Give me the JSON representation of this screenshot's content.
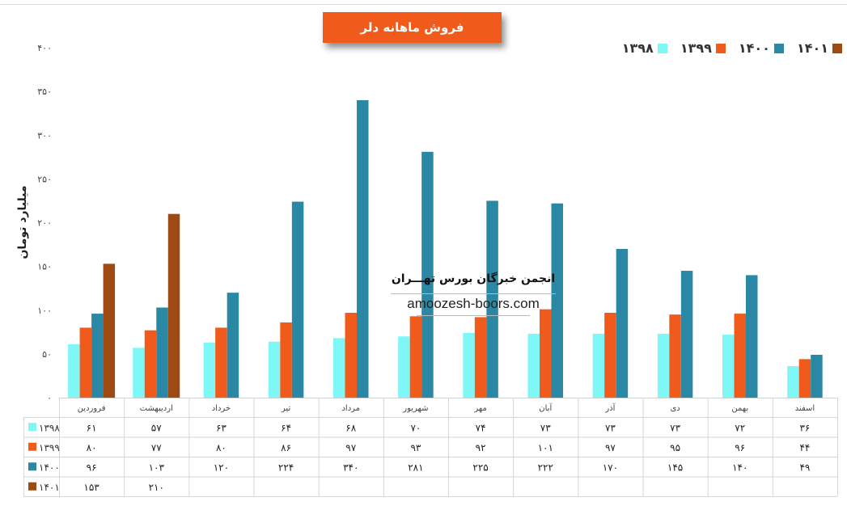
{
  "chart_data": {
    "type": "bar",
    "title": "فروش ماهانه دلر",
    "ylabel": "میلیارد تومان",
    "ylim": [
      0,
      400
    ],
    "yticks": [
      "۰",
      "۵۰",
      "۱۰۰",
      "۱۵۰",
      "۲۰۰",
      "۲۵۰",
      "۳۰۰",
      "۳۵۰",
      "۴۰۰"
    ],
    "legend_position": "top-right",
    "categories": [
      "فروردین",
      "اردیبهشت",
      "خرداد",
      "تیر",
      "مرداد",
      "شهریور",
      "مهر",
      "آبان",
      "آذر",
      "دی",
      "بهمن",
      "اسفند"
    ],
    "series": [
      {
        "name": "۱۳۹۸",
        "color": "#7ff7f7",
        "values": [
          61,
          57,
          63,
          64,
          68,
          70,
          74,
          73,
          73,
          73,
          72,
          36
        ],
        "labels": [
          "۶۱",
          "۵۷",
          "۶۳",
          "۶۴",
          "۶۸",
          "۷۰",
          "۷۴",
          "۷۳",
          "۷۳",
          "۷۳",
          "۷۲",
          "۳۶"
        ]
      },
      {
        "name": "۱۳۹۹",
        "color": "#f05a1a",
        "values": [
          80,
          77,
          80,
          86,
          97,
          93,
          92,
          101,
          97,
          95,
          96,
          44
        ],
        "labels": [
          "۸۰",
          "۷۷",
          "۸۰",
          "۸۶",
          "۹۷",
          "۹۳",
          "۹۲",
          "۱۰۱",
          "۹۷",
          "۹۵",
          "۹۶",
          "۴۴"
        ]
      },
      {
        "name": "۱۴۰۰",
        "color": "#2a88a4",
        "values": [
          96,
          103,
          120,
          224,
          340,
          281,
          225,
          222,
          170,
          145,
          140,
          49
        ],
        "labels": [
          "۹۶",
          "۱۰۳",
          "۱۲۰",
          "۲۲۴",
          "۳۴۰",
          "۲۸۱",
          "۲۲۵",
          "۲۲۲",
          "۱۷۰",
          "۱۴۵",
          "۱۴۰",
          "۴۹"
        ]
      },
      {
        "name": "۱۴۰۱",
        "color": "#9e4a12",
        "values": [
          153,
          210,
          null,
          null,
          null,
          null,
          null,
          null,
          null,
          null,
          null,
          null
        ],
        "labels": [
          "۱۵۳",
          "۲۱۰",
          "",
          "",
          "",
          "",
          "",
          "",
          "",
          "",
          "",
          ""
        ]
      }
    ]
  },
  "watermark": {
    "title": "انجمن خبرگان بورس تهـــران",
    "url": "amoozesh-boors.com"
  }
}
